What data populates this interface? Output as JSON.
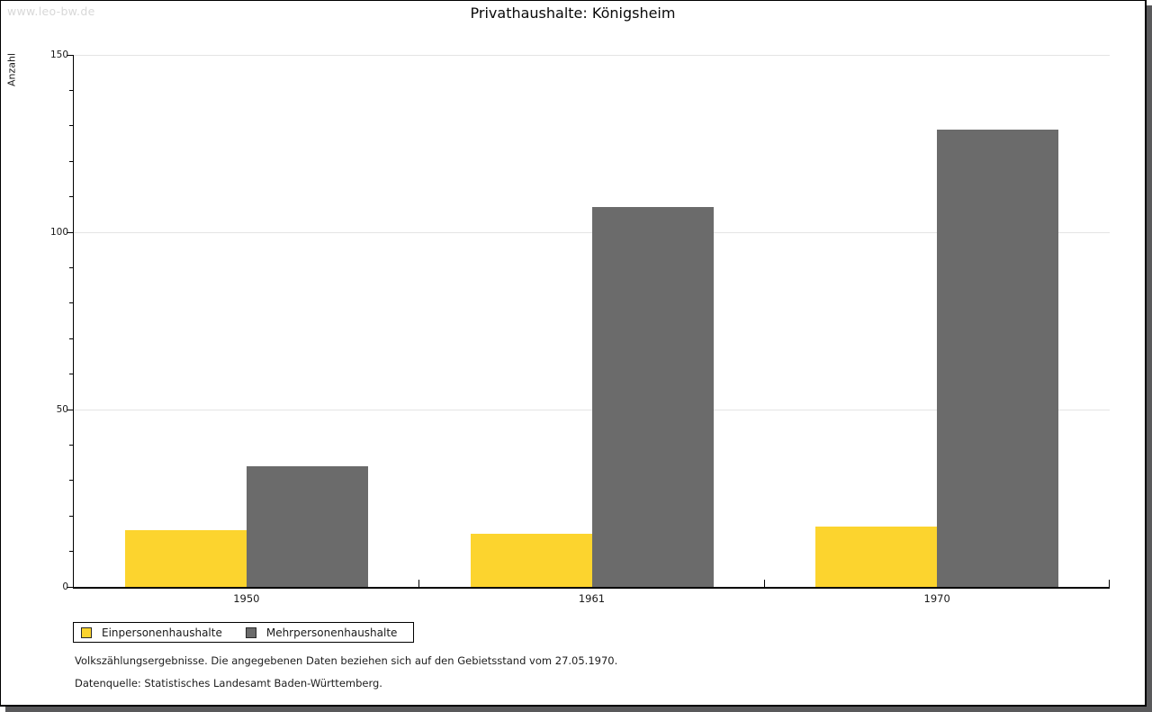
{
  "watermark": "www.leo-bw.de",
  "chart_data": {
    "type": "bar",
    "title": "Privathaushalte: Königsheim",
    "categories": [
      "1950",
      "1961",
      "1970"
    ],
    "series": [
      {
        "name": "Einpersonenhaushalte",
        "color": "#FCD42E",
        "values": [
          16,
          15,
          17
        ]
      },
      {
        "name": "Mehrpersonenhaushalte",
        "color": "#6B6B6B",
        "values": [
          34,
          107,
          129
        ]
      }
    ],
    "xlabel": "",
    "ylabel": "Anzahl",
    "ylim": [
      0,
      150
    ],
    "yticks_major": [
      0,
      50,
      100,
      150
    ],
    "ytick_minor_step": 10,
    "gridlines": [
      50,
      100,
      150
    ],
    "grid": true,
    "legend_position": "below-bottom-left"
  },
  "footnotes": [
    "Volkszählungsergebnisse. Die angegebenen Daten beziehen sich auf den Gebietsstand vom 27.05.1970.",
    "Datenquelle: Statistisches Landesamt Baden-Württemberg."
  ],
  "colors": {
    "bar_yellow": "#FCD42E",
    "bar_gray": "#6B6B6B",
    "gridline": "#e4e4e4",
    "axis": "#000000",
    "watermark_text": "#d8d8d8",
    "window_shadow": "#59595b"
  }
}
